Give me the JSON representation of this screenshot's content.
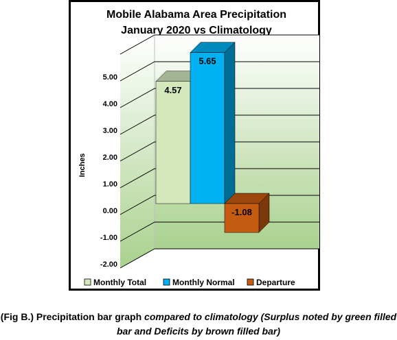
{
  "chart_data": {
    "type": "bar",
    "title": "Mobile Alabama Area Precipitation",
    "subtitle": "January 2020 vs Climatology",
    "ylabel": "Inches",
    "xlabel": "",
    "ylim": [
      -2.0,
      6.0
    ],
    "yticks": [
      "5.00",
      "4.00",
      "3.00",
      "2.00",
      "1.00",
      "0.00",
      "-1.00",
      "-2.00"
    ],
    "grid": true,
    "legend_position": "bottom",
    "series": [
      {
        "name": "Monthly Total",
        "value": 4.57,
        "label": "4.57",
        "color": "#d4e8bc"
      },
      {
        "name": "Monthly Normal",
        "value": 5.65,
        "label": "5.65",
        "color": "#00b0f0"
      },
      {
        "name": "Departure",
        "value": -1.08,
        "label": "-1.08",
        "color": "#c55a11"
      }
    ]
  },
  "caption": {
    "lead": "(Fig B.) Precipitation bar graph ",
    "italic": "compared to climatology (Surplus noted by green filled bar and Deficits by brown filled bar)"
  },
  "colors": {
    "plot_background_top": "#ffffff",
    "plot_background_bottom": "#a9d18e",
    "gridline": "#000000"
  }
}
